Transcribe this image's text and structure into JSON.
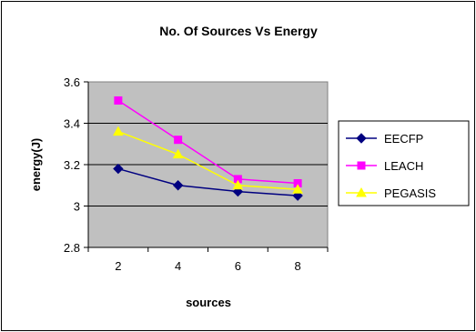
{
  "chart_data": {
    "type": "line",
    "title": "No. Of Sources Vs Energy",
    "xlabel": "sources",
    "ylabel": "energy(J)",
    "categories": [
      "2",
      "4",
      "6",
      "8"
    ],
    "ylim": [
      2.8,
      3.6
    ],
    "yticks": [
      "2.8",
      "3",
      "3.2",
      "3.4",
      "3.6"
    ],
    "grid": true,
    "legend_position": "right",
    "plot_background": "#c0c0c0",
    "series": [
      {
        "name": "EECFP",
        "values": [
          3.18,
          3.1,
          3.07,
          3.05
        ],
        "color": "#000080",
        "marker": "diamond"
      },
      {
        "name": "LEACH",
        "values": [
          3.51,
          3.32,
          3.13,
          3.11
        ],
        "color": "#ff00ff",
        "marker": "square"
      },
      {
        "name": "PEGASIS",
        "values": [
          3.36,
          3.25,
          3.1,
          3.08
        ],
        "color": "#ffff00",
        "marker": "triangle"
      }
    ]
  }
}
